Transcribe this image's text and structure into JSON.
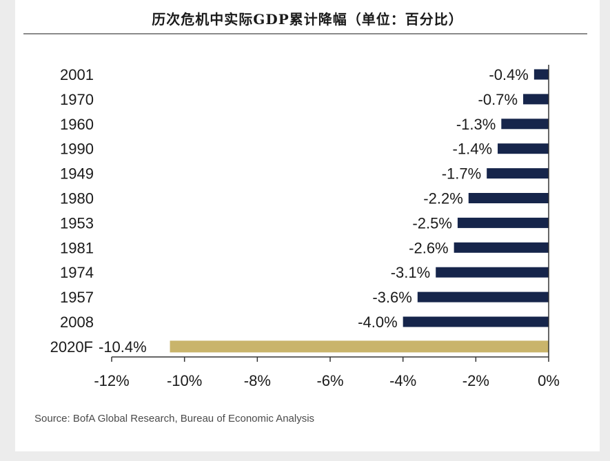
{
  "title": "历次危机中实际GDP累计降幅（单位：百分比）",
  "source": "Source: BofA Global Research, Bureau of Economic Analysis",
  "colors": {
    "bar": "#16254b",
    "highlight": "#c9b46b",
    "text": "#1a1a1a",
    "axis": "#333333"
  },
  "chart_data": {
    "type": "bar",
    "orientation": "horizontal",
    "title": "历次危机中实际GDP累计降幅（单位：百分比）",
    "xlabel": "",
    "ylabel": "",
    "xlim": [
      -12,
      0
    ],
    "xticks": [
      -12,
      -10,
      -8,
      -6,
      -4,
      -2,
      0
    ],
    "xtick_labels": [
      "-12%",
      "-10%",
      "-8%",
      "-6%",
      "-4%",
      "-2%",
      "0%"
    ],
    "grid": false,
    "categories": [
      "2001",
      "1970",
      "1960",
      "1990",
      "1949",
      "1980",
      "1953",
      "1981",
      "1974",
      "1957",
      "2008",
      "2020F"
    ],
    "values": [
      -0.4,
      -0.7,
      -1.3,
      -1.4,
      -1.7,
      -2.2,
      -2.5,
      -2.6,
      -3.1,
      -3.6,
      -4.0,
      -10.4
    ],
    "labels": [
      "-0.4%",
      "-0.7%",
      "-1.3%",
      "-1.4%",
      "-1.7%",
      "-2.2%",
      "-2.5%",
      "-2.6%",
      "-3.1%",
      "-3.6%",
      "-4.0%",
      "-10.4%"
    ],
    "highlight_category": "2020F"
  }
}
